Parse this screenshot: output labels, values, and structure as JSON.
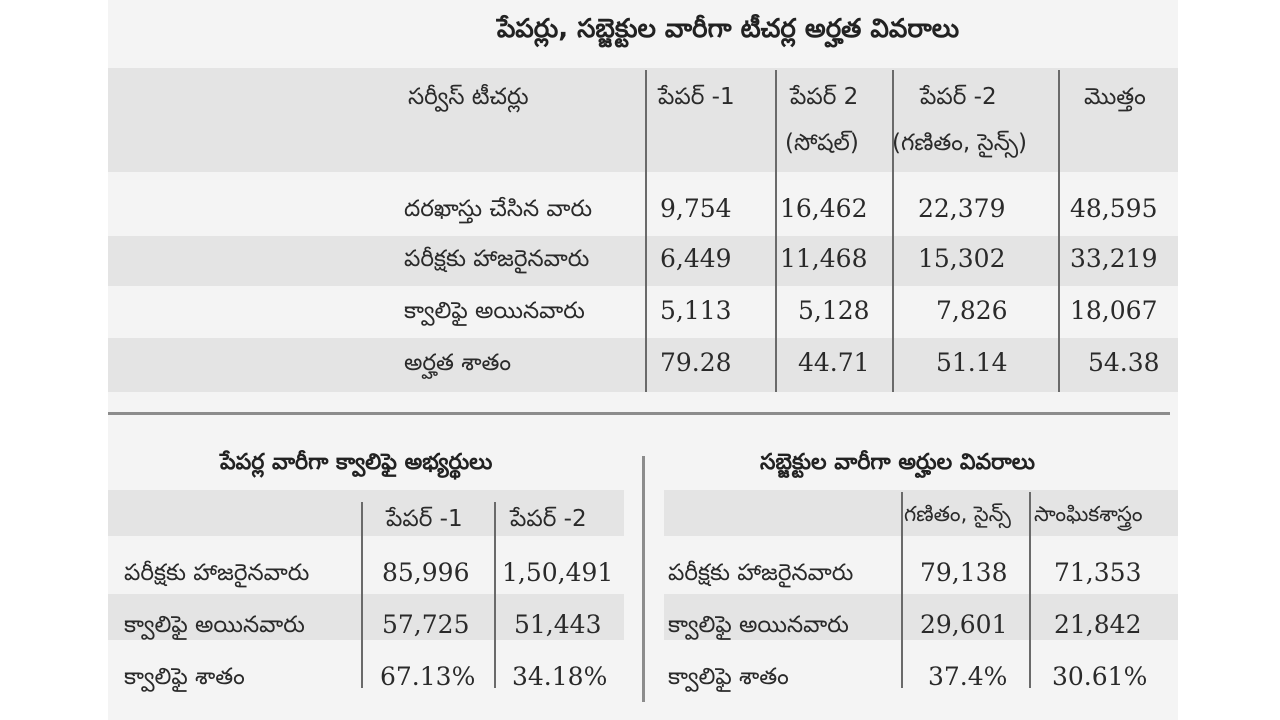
{
  "main_table": {
    "title": "పేపర్లు, సబ్జెక్టుల వారీగా టీచర్ల అర్హత వివరాలు",
    "corner": "సర్వీస్ టీచర్లు",
    "columns": [
      {
        "line1": "పేపర్ -1",
        "line2": ""
      },
      {
        "line1": "పేపర్ 2",
        "line2": "(సోషల్)"
      },
      {
        "line1": "పేపర్ -2",
        "line2": "(గణితం, సైన్స్)"
      },
      {
        "line1": "మొత్తం",
        "line2": ""
      }
    ],
    "rows": [
      {
        "label": "దరఖాస్తు చేసిన వారు",
        "values": [
          "9,754",
          "16,462",
          "22,379",
          "48,595"
        ]
      },
      {
        "label": "పరీక్షకు హాజరైనవారు",
        "values": [
          "6,449",
          "11,468",
          "15,302",
          "33,219"
        ]
      },
      {
        "label": "క్వాలిఫై అయినవారు",
        "values": [
          "5,113",
          "5,128",
          "7,826",
          "18,067"
        ]
      },
      {
        "label": "అర్హత శాతం",
        "values": [
          "79.28",
          "44.71",
          "51.14",
          "54.38"
        ]
      }
    ]
  },
  "left_table": {
    "title": "పేపర్ల వారీగా క్వాలిఫై అభ్యర్థులు",
    "columns": [
      "పేపర్ -1",
      "పేపర్ -2"
    ],
    "rows": [
      {
        "label": "పరీక్షకు హాజరైనవారు",
        "values": [
          "85,996",
          "1,50,491"
        ]
      },
      {
        "label": "క్వాలిఫై అయినవారు",
        "values": [
          "57,725",
          "51,443"
        ]
      },
      {
        "label": "క్వాలిఫై శాతం",
        "values": [
          "67.13%",
          "34.18%"
        ]
      }
    ]
  },
  "right_table": {
    "title": "సబ్జెక్టుల వారీగా అర్హుల వివరాలు",
    "columns": [
      "గణితం, సైన్స్",
      "సాంఘికశాస్త్రం"
    ],
    "rows": [
      {
        "label": "పరీక్షకు హాజరైనవారు",
        "values": [
          "79,138",
          "71,353"
        ]
      },
      {
        "label": "క్వాలిఫై అయినవారు",
        "values": [
          "29,601",
          "21,842"
        ]
      },
      {
        "label": "క్వాలిఫై శాతం",
        "values": [
          "37.4%",
          "30.61%"
        ]
      }
    ]
  }
}
